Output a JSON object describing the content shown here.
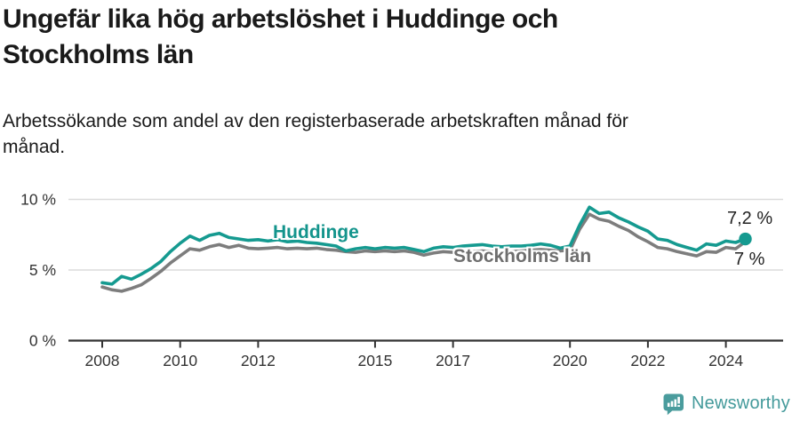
{
  "header": {
    "title_line1": "Ungefär lika hög arbetslöshet i Huddinge och",
    "title_line2": "Stockholms län",
    "subtitle_line1": "Arbetssökande som andel av den registerbaserade arbetskraften månad för",
    "subtitle_line2": "månad."
  },
  "footer": {
    "brand": "Newsworthy",
    "brand_color": "#449a9b"
  },
  "chart_data": {
    "type": "line",
    "title": "Ungefär lika hög arbetslöshet i Huddinge och Stockholms län",
    "subtitle": "Arbetssökande som andel av den registerbaserade arbetskraften månad för månad.",
    "xlabel": "",
    "ylabel": "",
    "unit": "%",
    "ylim": [
      0,
      10
    ],
    "grid": "horizontal",
    "legend_position": "inline-labels",
    "x_start": 2008,
    "x_step": 0.25,
    "x_end": 2024.5,
    "xticks": [
      2008,
      2010,
      2012,
      2015,
      2017,
      2020,
      2022,
      2024
    ],
    "yticks": [
      {
        "value": 0,
        "label": "0 %"
      },
      {
        "value": 5,
        "label": "5 %"
      },
      {
        "value": 10,
        "label": "10 %"
      }
    ],
    "series": [
      {
        "name": "Huddinge",
        "color": "#159a90",
        "end_label": "7,2 %",
        "end_value": 7.2,
        "values": [
          4.1,
          4.0,
          4.55,
          4.35,
          4.7,
          5.1,
          5.6,
          6.3,
          6.9,
          7.4,
          7.1,
          7.45,
          7.6,
          7.3,
          7.2,
          7.1,
          7.15,
          7.05,
          7.15,
          7.0,
          7.05,
          6.95,
          6.9,
          6.8,
          6.7,
          6.35,
          6.5,
          6.6,
          6.5,
          6.6,
          6.55,
          6.6,
          6.45,
          6.3,
          6.55,
          6.65,
          6.6,
          6.7,
          6.75,
          6.8,
          6.7,
          6.65,
          6.7,
          6.7,
          6.75,
          6.85,
          6.75,
          6.55,
          6.7,
          8.2,
          9.45,
          9.0,
          9.1,
          8.7,
          8.4,
          8.05,
          7.75,
          7.2,
          7.1,
          6.8,
          6.6,
          6.4,
          6.85,
          6.75,
          7.05,
          6.95,
          7.2
        ]
      },
      {
        "name": "Stockholms län",
        "color": "#7d7d7d",
        "end_label": "7 %",
        "end_value": 7.0,
        "values": [
          3.8,
          3.6,
          3.5,
          3.7,
          3.95,
          4.4,
          4.9,
          5.5,
          6.0,
          6.5,
          6.4,
          6.65,
          6.8,
          6.6,
          6.75,
          6.55,
          6.5,
          6.55,
          6.6,
          6.5,
          6.55,
          6.5,
          6.55,
          6.45,
          6.4,
          6.3,
          6.25,
          6.35,
          6.3,
          6.35,
          6.3,
          6.35,
          6.25,
          6.05,
          6.2,
          6.3,
          6.25,
          6.3,
          6.3,
          6.35,
          6.3,
          6.25,
          6.3,
          6.35,
          6.4,
          6.45,
          6.4,
          6.35,
          6.4,
          7.9,
          8.95,
          8.6,
          8.45,
          8.1,
          7.8,
          7.35,
          7.0,
          6.6,
          6.5,
          6.3,
          6.15,
          6.0,
          6.3,
          6.25,
          6.6,
          6.5,
          7.0
        ]
      }
    ]
  }
}
